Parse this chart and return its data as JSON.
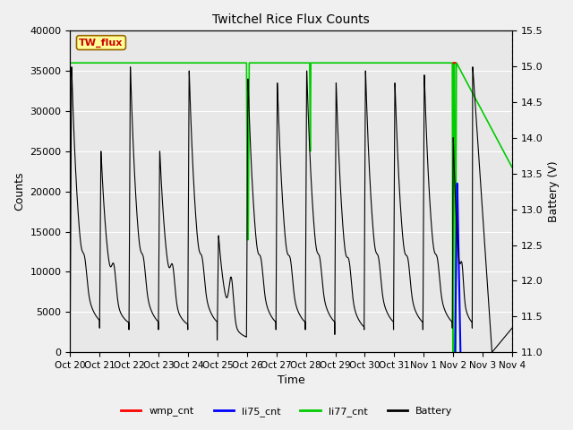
{
  "title": "Twitchel Rice Flux Counts",
  "xlabel": "Time",
  "ylabel_left": "Counts",
  "ylabel_right": "Battery (V)",
  "ylim_left": [
    0,
    40000
  ],
  "ylim_right": [
    11.0,
    15.5
  ],
  "background_color": "#f0f0f0",
  "plot_bg_color": "#e8e8e8",
  "grid_color": "#ffffff",
  "x_tick_labels": [
    "Oct 20",
    "Oct 21",
    "Oct 22",
    "Oct 23",
    "Oct 24",
    "Oct 25",
    "Oct 26",
    "Oct 27",
    "Oct 28",
    "Oct 29",
    "Oct 30",
    "Oct 31",
    "Nov 1",
    "Nov 2",
    "Nov 3",
    "Nov 4"
  ],
  "legend_labels": [
    "wmp_cnt",
    "li75_cnt",
    "li77_cnt",
    "Battery"
  ],
  "legend_colors": [
    "#ff0000",
    "#0000ff",
    "#00cc00",
    "#000000"
  ],
  "tw_flux_box_color": "#ffff99",
  "tw_flux_text_color": "#cc0000",
  "tw_flux_border_color": "#996600",
  "figsize": [
    6.4,
    4.8
  ],
  "dpi": 100
}
